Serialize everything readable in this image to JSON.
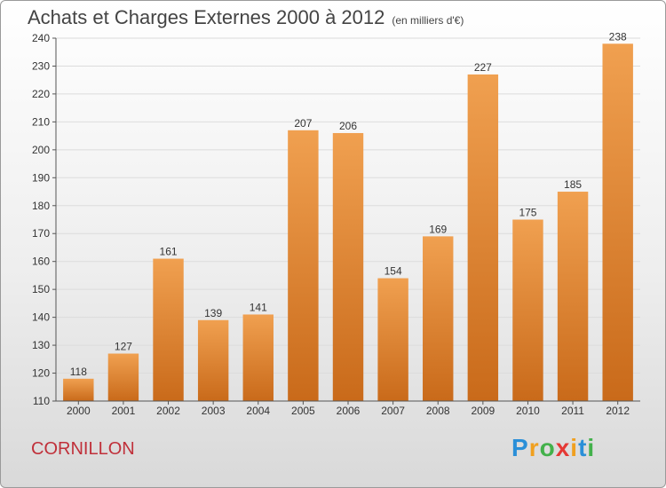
{
  "header": {
    "title": "Achats et Charges Externes 2000 à 2012",
    "subtitle": "(en milliers d'€)"
  },
  "footer": {
    "commune": "CORNILLON",
    "logo_text": "Proxiti",
    "logo_colors": [
      "#2a8fd8",
      "#f0a020",
      "#43b14b",
      "#e53935",
      "#f0a020",
      "#2a8fd8",
      "#43b14b"
    ]
  },
  "chart_data": {
    "type": "bar",
    "title": "Achats et Charges Externes 2000 à 2012",
    "subtitle": "(en milliers d'€)",
    "xlabel": "",
    "ylabel": "",
    "categories": [
      "2000",
      "2001",
      "2002",
      "2003",
      "2004",
      "2005",
      "2006",
      "2007",
      "2008",
      "2009",
      "2010",
      "2011",
      "2012"
    ],
    "values": [
      118,
      127,
      161,
      139,
      141,
      207,
      206,
      154,
      169,
      227,
      175,
      185,
      238
    ],
    "ylim": [
      110,
      240
    ],
    "yticks": [
      110,
      120,
      130,
      140,
      150,
      160,
      170,
      180,
      190,
      200,
      210,
      220,
      230,
      240
    ],
    "grid": true,
    "bar_color": "#f0a050",
    "bar_color_dark": "#c96a1a"
  }
}
